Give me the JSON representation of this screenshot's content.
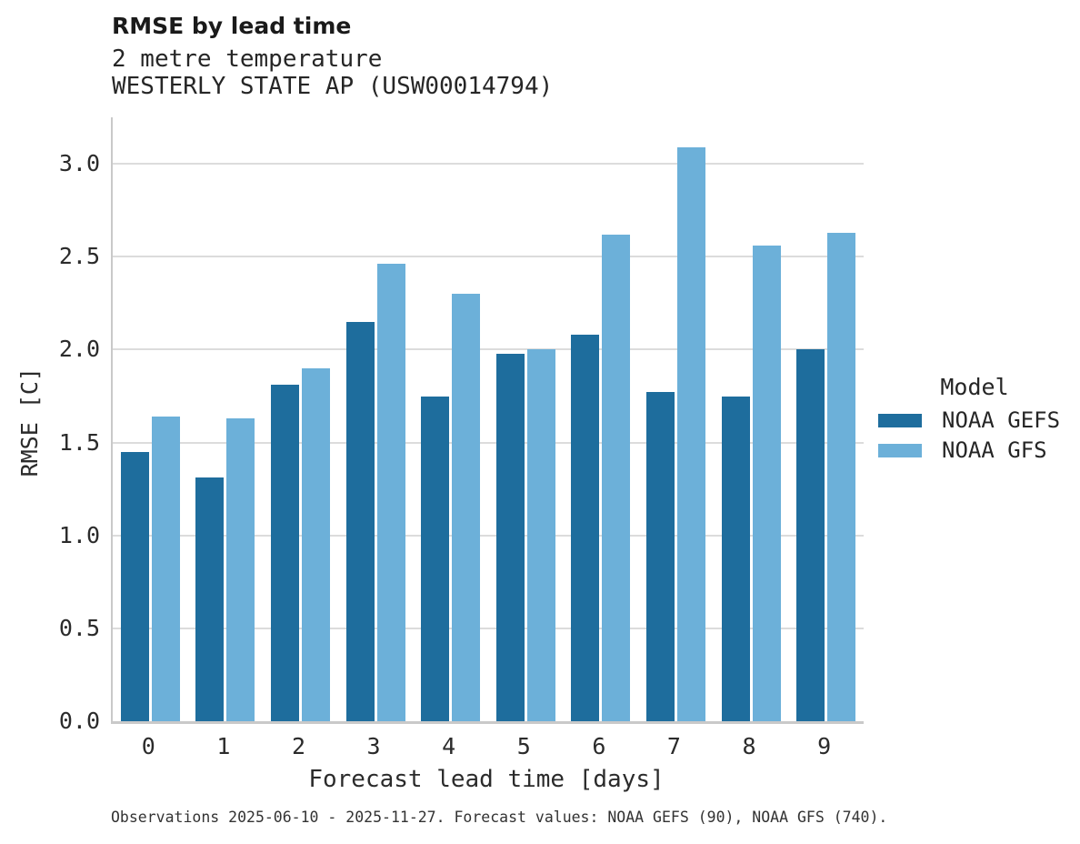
{
  "header": {
    "title": "RMSE by lead time",
    "subtitle1": "2 metre temperature",
    "subtitle2": "WESTERLY STATE AP (USW00014794)"
  },
  "chart_data": {
    "type": "bar",
    "title": "RMSE by lead time",
    "subtitle": [
      "2 metre temperature",
      "WESTERLY STATE AP (USW00014794)"
    ],
    "categories": [
      "0",
      "1",
      "2",
      "3",
      "4",
      "5",
      "6",
      "7",
      "8",
      "9"
    ],
    "series": [
      {
        "name": "NOAA GEFS",
        "color": "#1e6d9d",
        "values": [
          1.45,
          1.31,
          1.81,
          2.15,
          1.75,
          1.98,
          2.08,
          1.77,
          1.75,
          2.0
        ]
      },
      {
        "name": "NOAA GFS",
        "color": "#6cb0d9",
        "values": [
          1.64,
          1.63,
          1.9,
          2.46,
          2.3,
          2.0,
          2.62,
          3.09,
          2.56,
          2.63
        ]
      }
    ],
    "xlabel": "Forecast lead time [days]",
    "ylabel": "RMSE [C]",
    "ylim": [
      0,
      3.25
    ],
    "yticks": [
      "0.0",
      "0.5",
      "1.0",
      "1.5",
      "2.0",
      "2.5",
      "3.0"
    ],
    "grid": true,
    "legend": {
      "title": "Model",
      "position": "center-right"
    }
  },
  "footer": {
    "caption": "Observations 2025-06-10 - 2025-11-27. Forecast values: NOAA GEFS (90), NOAA GFS (740)."
  },
  "colors": {
    "background": "#ffffff",
    "grid": "#dcdcdc",
    "spine": "#c9c9c9",
    "text": "#262626",
    "gefs_bar": "#1e6d9d",
    "gfs_bar": "#6cb0d9"
  }
}
